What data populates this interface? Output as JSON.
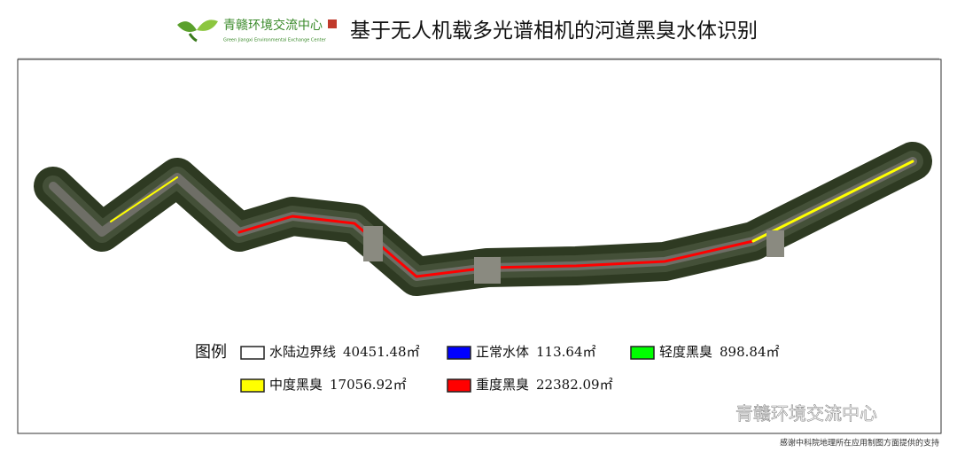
{
  "header": {
    "logo_text": "青赣环境交流中心",
    "logo_subtext": "Green Jiangxi Environmental Exchange Center",
    "title": "基于无人机载多光谱相机的河道黑臭水体识别"
  },
  "legend": {
    "title": "图例",
    "items": [
      {
        "name": "水陆边界线",
        "area": "40451.48㎡",
        "color": "#ffffff"
      },
      {
        "name": "正常水体",
        "area": "113.64㎡",
        "color": "#0000ff"
      },
      {
        "name": "轻度黑臭",
        "area": "898.84㎡",
        "color": "#00ff00"
      },
      {
        "name": "中度黑臭",
        "area": "17056.92㎡",
        "color": "#ffff00"
      },
      {
        "name": "重度黑臭",
        "area": "22382.09㎡",
        "color": "#ff0000"
      }
    ]
  },
  "watermark": "青赣环境交流中心",
  "footnote": "感谢中科院地理所在应用制图方面提供的支持"
}
